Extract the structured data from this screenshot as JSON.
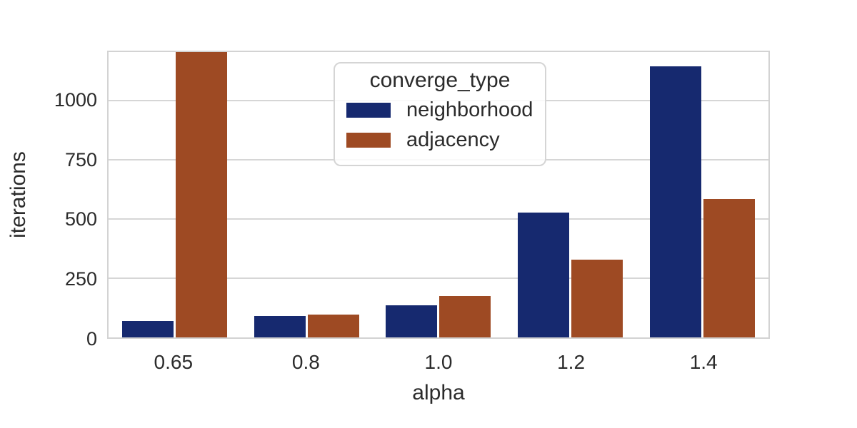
{
  "chart_data": {
    "type": "bar",
    "title": "",
    "xlabel": "alpha",
    "ylabel": "iterations",
    "categories": [
      "0.65",
      "0.8",
      "1.0",
      "1.2",
      "1.4"
    ],
    "series": [
      {
        "name": "neighborhood",
        "color": "#16296f",
        "values": [
          68,
          90,
          137,
          528,
          1145
        ]
      },
      {
        "name": "adjacency",
        "color": "#9e4a23",
        "values": [
          1205,
          96,
          175,
          327,
          585
        ]
      }
    ],
    "ylim": [
      0,
      1205
    ],
    "yticks": [
      0,
      250,
      500,
      750,
      1000
    ],
    "grid": "horizontal",
    "legend": {
      "title": "converge_type",
      "position": "upper left-of-center inside axes"
    },
    "notes": "adjacency bar at alpha=0.65 reaches the top of the axes (value clipped at ~1205)"
  },
  "colors": {
    "background": "#ffffff",
    "grid": "#d6d6d6",
    "spine": "#d3d3d3",
    "text": "#2b2b2b",
    "legend_border": "#d5d5d5"
  }
}
